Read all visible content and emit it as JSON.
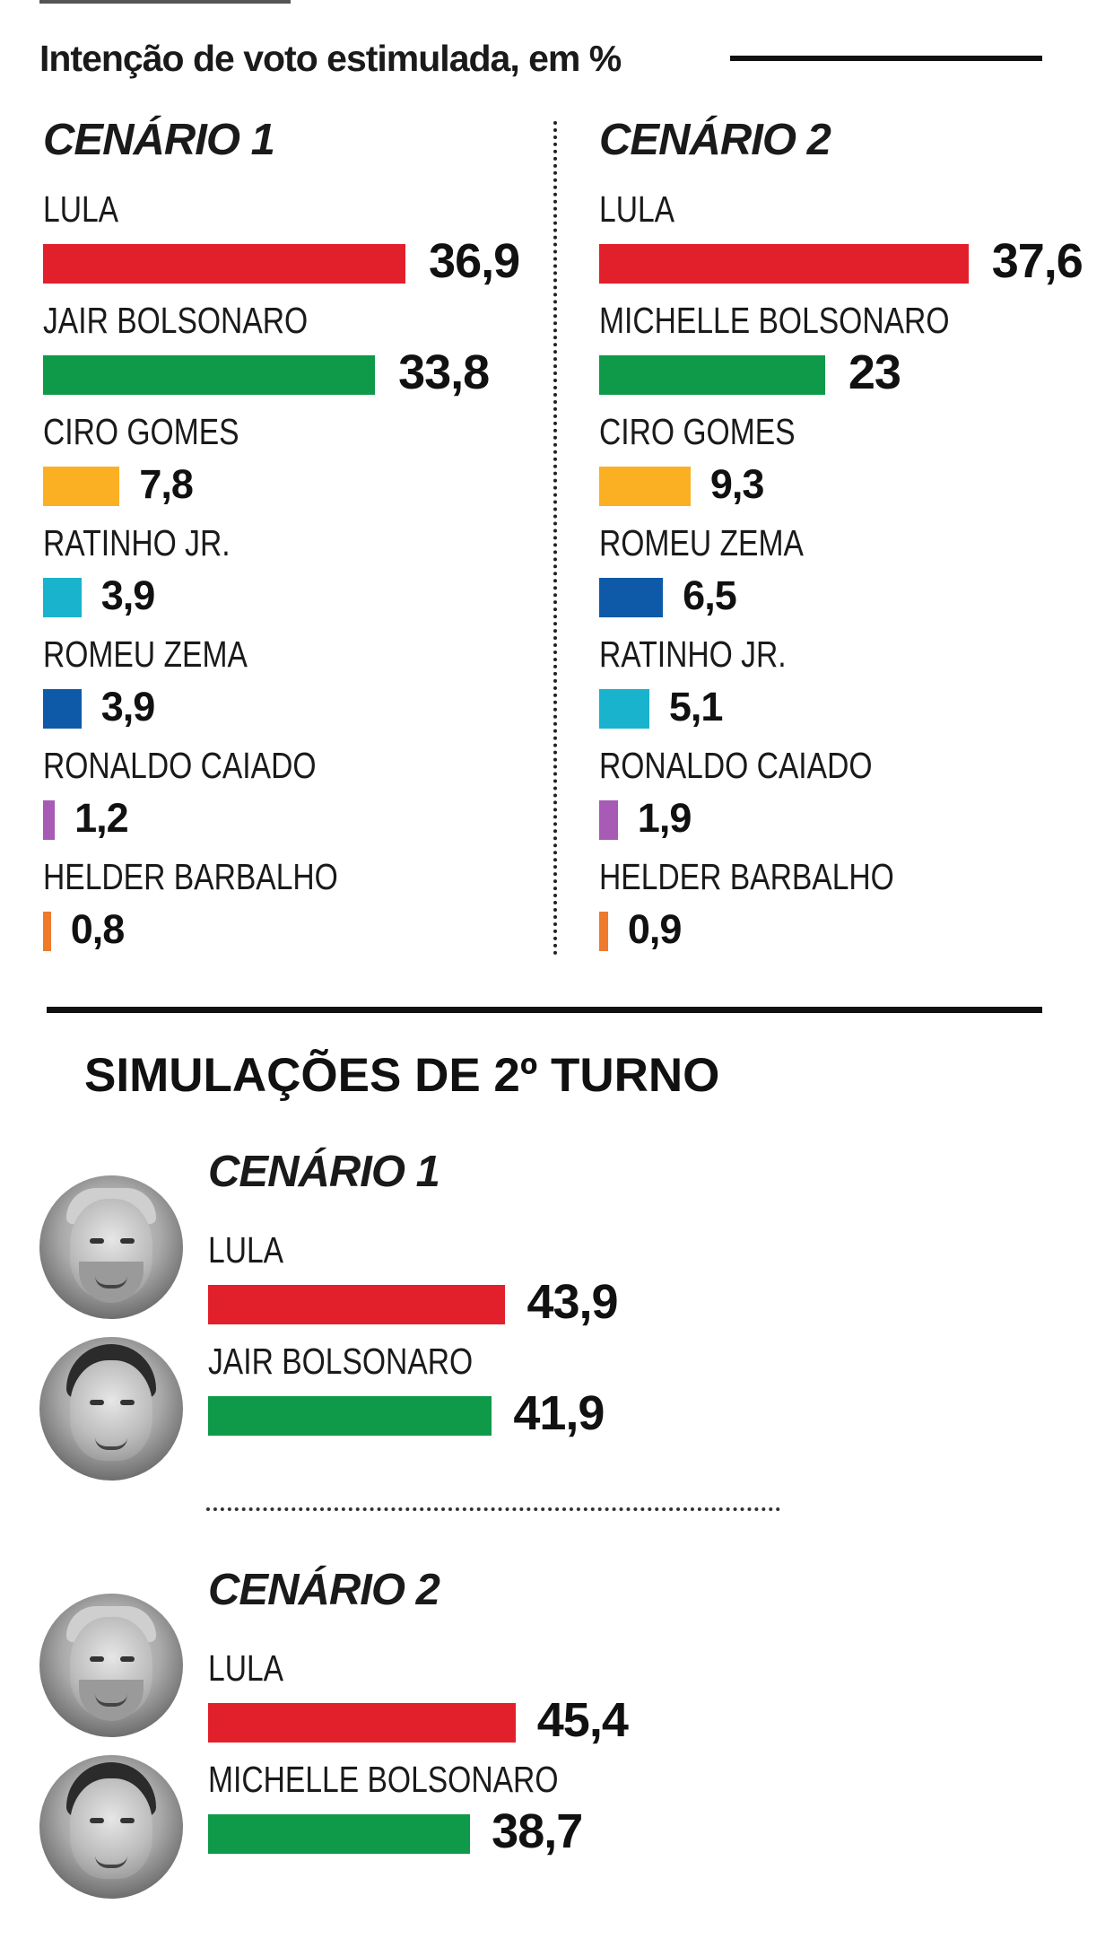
{
  "subtitle": "Intenção de voto estimulada, em %",
  "colors": {
    "red": "#e2202b",
    "green": "#0f9a4a",
    "yellow": "#fbb023",
    "cyan": "#19b3cd",
    "blue": "#0f5aa8",
    "purple": "#a75bb4",
    "orange": "#ef7a2c"
  },
  "chart_data": [
    {
      "type": "bar",
      "title": "CENÁRIO 1",
      "categories": [
        "LULA",
        "JAIR BOLSONARO",
        "CIRO GOMES",
        "RATINHO JR.",
        "ROMEU ZEMA",
        "RONALDO CAIADO",
        "HELDER BARBALHO"
      ],
      "values": [
        36.9,
        33.8,
        7.8,
        3.9,
        3.9,
        1.2,
        0.8
      ],
      "labels": [
        "36,9",
        "33,8",
        "7,8",
        "3,9",
        "3,9",
        "1,2",
        "0,8"
      ],
      "colors": [
        "red",
        "green",
        "yellow",
        "cyan",
        "blue",
        "purple",
        "orange"
      ]
    },
    {
      "type": "bar",
      "title": "CENÁRIO 2",
      "categories": [
        "LULA",
        "MICHELLE BOLSONARO",
        "CIRO GOMES",
        "ROMEU ZEMA",
        "RATINHO JR.",
        "RONALDO CAIADO",
        "HELDER BARBALHO"
      ],
      "values": [
        37.6,
        23,
        9.3,
        6.5,
        5.1,
        1.9,
        0.9
      ],
      "labels": [
        "37,6",
        "23",
        "9,3",
        "6,5",
        "5,1",
        "1,9",
        "0,9"
      ],
      "colors": [
        "red",
        "green",
        "yellow",
        "blue",
        "cyan",
        "purple",
        "orange"
      ]
    },
    {
      "type": "bar",
      "title": "CENÁRIO 1",
      "section": "SIMULAÇÕES DE 2º TURNO",
      "categories": [
        "LULA",
        "JAIR BOLSONARO"
      ],
      "values": [
        43.9,
        41.9
      ],
      "labels": [
        "43,9",
        "41,9"
      ],
      "colors": [
        "red",
        "green"
      ]
    },
    {
      "type": "bar",
      "title": "CENÁRIO 2",
      "section": "SIMULAÇÕES DE 2º TURNO",
      "categories": [
        "LULA",
        "MICHELLE BOLSONARO"
      ],
      "values": [
        45.4,
        38.7
      ],
      "labels": [
        "45,4",
        "38,7"
      ],
      "colors": [
        "red",
        "green"
      ]
    }
  ],
  "runoff": {
    "section_title": "SIMULAÇÕES DE 2º TURNO"
  },
  "avatars": [
    "lula-photo-icon",
    "jair-bolsonaro-photo-icon",
    "lula-photo-icon",
    "michelle-bolsonaro-photo-icon"
  ]
}
